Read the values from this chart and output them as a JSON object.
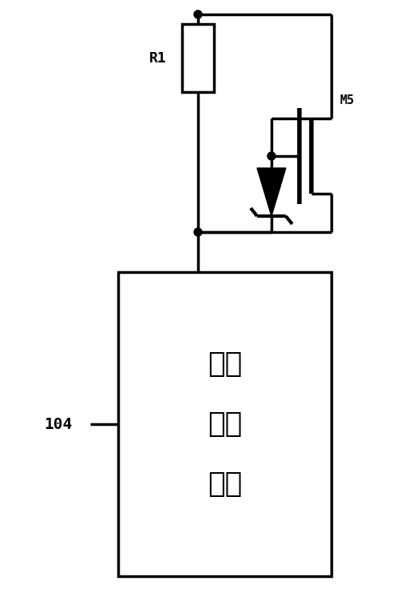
{
  "background_color": "#ffffff",
  "line_color": "#000000",
  "lw": 2.0,
  "lw_thick": 2.5,
  "fig_width": 4.96,
  "fig_height": 7.61,
  "dpi": 100,
  "label_R1": "R1",
  "label_M5": "M5",
  "label_104": "104",
  "label_box_line1": "第一",
  "label_box_line2": "稳压",
  "label_box_line3": "单元",
  "font_size_labels": 13,
  "font_size_box": 26,
  "font_size_104": 14
}
